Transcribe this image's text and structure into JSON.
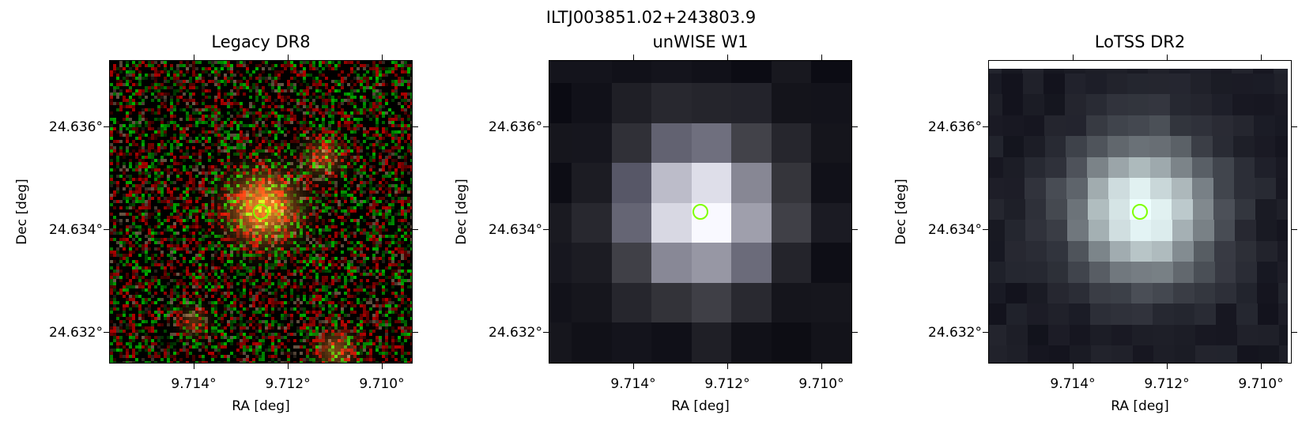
{
  "suptitle": "ILTJ003851.02+243803.9",
  "panels": [
    {
      "title": "Legacy DR8",
      "xlabel": "RA [deg]",
      "ylabel": "Dec [deg]"
    },
    {
      "title": "unWISE W1",
      "xlabel": "RA [deg]",
      "ylabel": "Dec [deg]"
    },
    {
      "title": "LoTSS DR2",
      "xlabel": "RA [deg]",
      "ylabel": "Dec [deg]"
    }
  ],
  "axes": {
    "xticks": [
      "9.714°",
      "9.712°",
      "9.710°"
    ],
    "yticks": [
      "24.636°",
      "24.634°",
      "24.632°"
    ]
  },
  "marker_color": "#7fff00"
}
